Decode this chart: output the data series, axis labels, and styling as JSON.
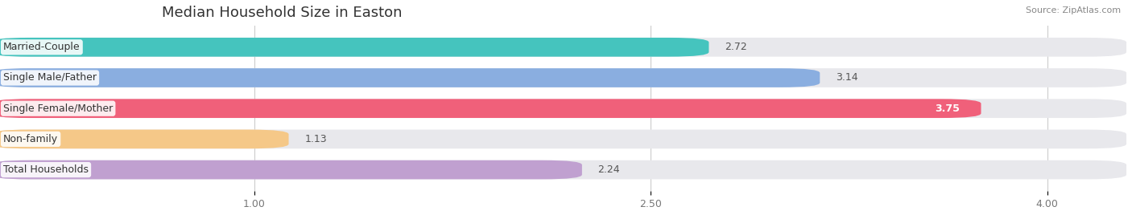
{
  "title": "Median Household Size in Easton",
  "source": "Source: ZipAtlas.com",
  "categories": [
    "Married-Couple",
    "Single Male/Father",
    "Single Female/Mother",
    "Non-family",
    "Total Households"
  ],
  "values": [
    2.72,
    3.14,
    3.75,
    1.13,
    2.24
  ],
  "colors": [
    "#45c4be",
    "#8aaee0",
    "#f0607a",
    "#f5c888",
    "#c0a0d0"
  ],
  "xmin": 0.0,
  "xmax": 4.3,
  "xlim_display": [
    0.65,
    4.3
  ],
  "xticks": [
    1.0,
    2.5,
    4.0
  ],
  "xticklabels": [
    "1.00",
    "2.50",
    "4.00"
  ],
  "background_color": "#ffffff",
  "bar_bg_color": "#e8e8ec",
  "title_fontsize": 13,
  "label_fontsize": 9,
  "value_fontsize": 9,
  "bar_height": 0.62,
  "bar_gap": 0.38,
  "label_color": "#444444",
  "value_inside_color": "#ffffff",
  "value_outside_color": "#555555"
}
